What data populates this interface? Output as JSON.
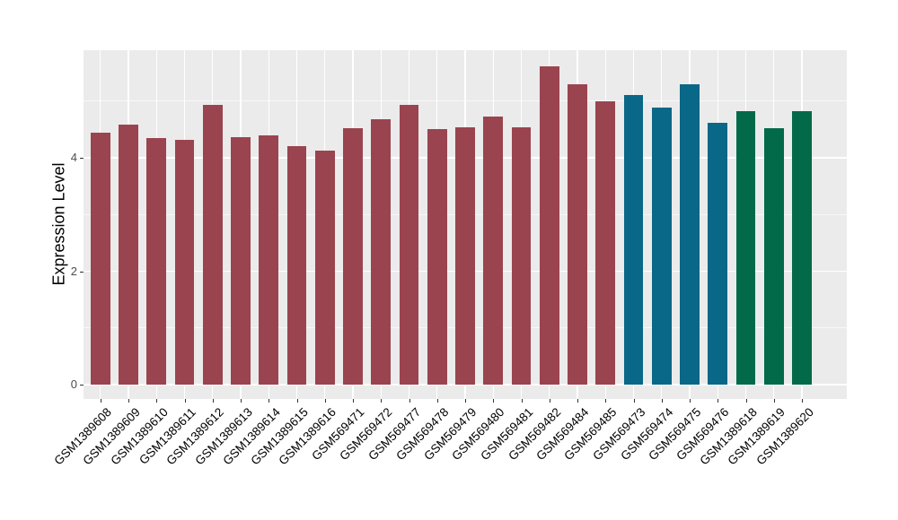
{
  "chart_data": {
    "type": "bar",
    "title": "",
    "xlabel": "",
    "ylabel": "Expression Level",
    "ylim": [
      -0.25,
      5.9
    ],
    "yticks": [
      0,
      2,
      4
    ],
    "grid": {
      "major": [
        0,
        2,
        4
      ],
      "minor": [
        1,
        3,
        5
      ],
      "vertical": "at_each_bar_center"
    },
    "legend": "none",
    "categories": [
      "GSM1389608",
      "GSM1389609",
      "GSM1389610",
      "GSM1389611",
      "GSM1389612",
      "GSM1389613",
      "GSM1389614",
      "GSM1389615",
      "GSM1389616",
      "GSM569471",
      "GSM569472",
      "GSM569477",
      "GSM569478",
      "GSM569479",
      "GSM569480",
      "GSM569481",
      "GSM569482",
      "GSM569484",
      "GSM569485",
      "GSM569473",
      "GSM569474",
      "GSM569475",
      "GSM569476",
      "GSM1389618",
      "GSM1389619",
      "GSM1389620"
    ],
    "values": [
      4.45,
      4.58,
      4.35,
      4.31,
      4.94,
      4.36,
      4.39,
      4.21,
      4.12,
      4.52,
      4.68,
      4.93,
      4.5,
      4.53,
      4.73,
      4.53,
      5.62,
      5.3,
      5.0,
      5.1,
      4.88,
      5.3,
      4.62,
      4.82,
      4.52,
      4.82
    ],
    "bar_colors": [
      "maroon",
      "maroon",
      "maroon",
      "maroon",
      "maroon",
      "maroon",
      "maroon",
      "maroon",
      "maroon",
      "maroon",
      "maroon",
      "maroon",
      "maroon",
      "maroon",
      "maroon",
      "maroon",
      "maroon",
      "maroon",
      "maroon",
      "teal",
      "teal",
      "teal",
      "teal",
      "green",
      "green",
      "green"
    ],
    "palette": {
      "maroon": "#9A4450",
      "teal": "#096787",
      "green": "#026A49"
    }
  },
  "colors": {
    "panel_bg": "#EBEBEB",
    "grid": "#FFFFFF",
    "tick_mark": "#333333",
    "y_tick_text": "#4D4D4D",
    "x_tick_text": "#000000",
    "axis_title_text": "#000000"
  }
}
